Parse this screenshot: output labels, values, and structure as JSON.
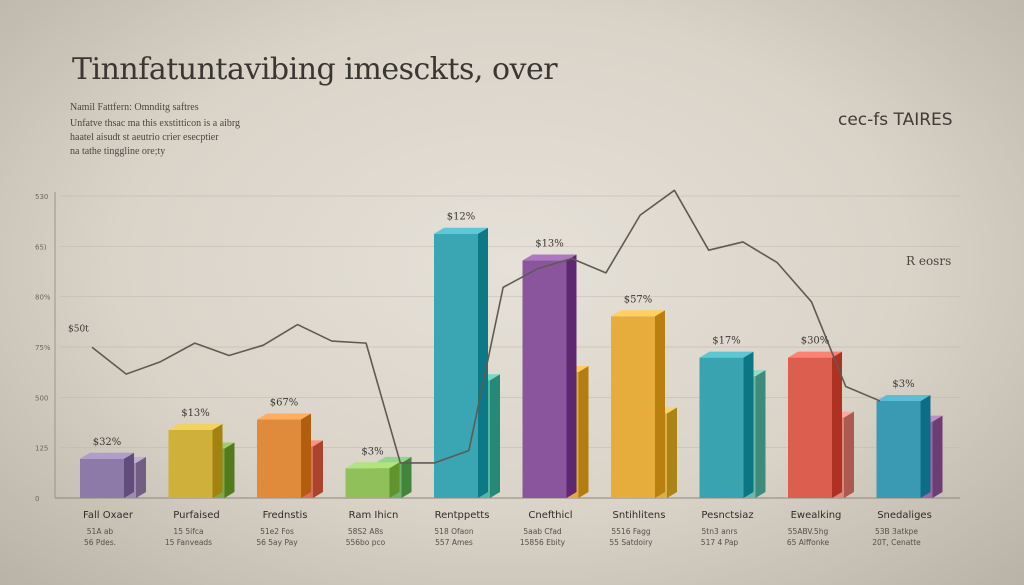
{
  "header": {
    "title": "Tinnfatuntavibing imesckts, over",
    "subtitle_lines": [
      "Namil Fattfern: Omnditg saftres",
      "Unfatve thsac ma this exstitticon is a aibrg",
      "haatel aisudt st aeutrio crier esecptier",
      "na tathe tinggline ore;ty"
    ],
    "corner_label": "cec-fs TAIRES",
    "side_note": "R eosrs"
  },
  "chart_data": {
    "type": "bar",
    "y_ticks": [
      "530",
      "65)",
      "80%",
      "75%",
      "500",
      "125",
      "0"
    ],
    "categories": [
      "Fall Oxaer",
      "Purfaised",
      "Frednstis",
      "Ram Ihicn",
      "Rentppetts",
      "Cnefthicl",
      "Sntihlitens",
      "Pesnctsiaz",
      "Ewealking",
      "Snedaliges"
    ],
    "category_sublabels": [
      [
        "51A ab",
        "56 Pdes."
      ],
      [
        "15 5ifca",
        "15 Fanveads"
      ],
      [
        "51e2 Fos",
        "56 5ay Pay"
      ],
      [
        "58S2 A8s",
        "556bo pco"
      ],
      [
        "518 Ofaon",
        "557 Ames"
      ],
      [
        "5aab Cfad",
        "15856 Ebity"
      ],
      [
        "5516 Fagg",
        "55 Satdoiry"
      ],
      [
        "5tn3 anrs",
        "517 4 Pap"
      ],
      [
        "55ABV.5hg",
        "65 Alffonke"
      ],
      [
        "53B 3atkpe",
        "20T, Cenatte"
      ]
    ],
    "series": [
      {
        "values": [
          95,
          165,
          190,
          72,
          640,
          575,
          440,
          340,
          340,
          235
        ],
        "value_labels": [
          "$32%",
          "$13%",
          "$67%",
          "$3%",
          "$12%",
          "$13%",
          "$57%",
          "$17%",
          "$30%",
          "$3%"
        ],
        "colors": [
          "#8e7aa8",
          "#cfb03a",
          "#e08a3c",
          "#8fc05a",
          "#3aa6b4",
          "#8a559c",
          "#e6ac3c",
          "#3aa3b0",
          "#dc5e4e",
          "#3a9ab4"
        ]
      },
      {
        "values": [
          85,
          120,
          125,
          85,
          285,
          305,
          205,
          295,
          195,
          185
        ],
        "colors": [
          "#a08bb0",
          "#7fa84a",
          "#d9705a",
          "#6fb26a",
          "#53b6a4",
          "#e0aa3c",
          "#d8b043",
          "#6cb8a8",
          "#d9877c",
          "#9a6ba3"
        ]
      }
    ],
    "trend_line": {
      "label": "$50t",
      "values": [
        365,
        300,
        330,
        375,
        345,
        370,
        420,
        380,
        375,
        85,
        85,
        115,
        510,
        555,
        580,
        545,
        685,
        745,
        600,
        620,
        570,
        475,
        270,
        235
      ]
    },
    "ylim": [
      0,
      770
    ]
  }
}
